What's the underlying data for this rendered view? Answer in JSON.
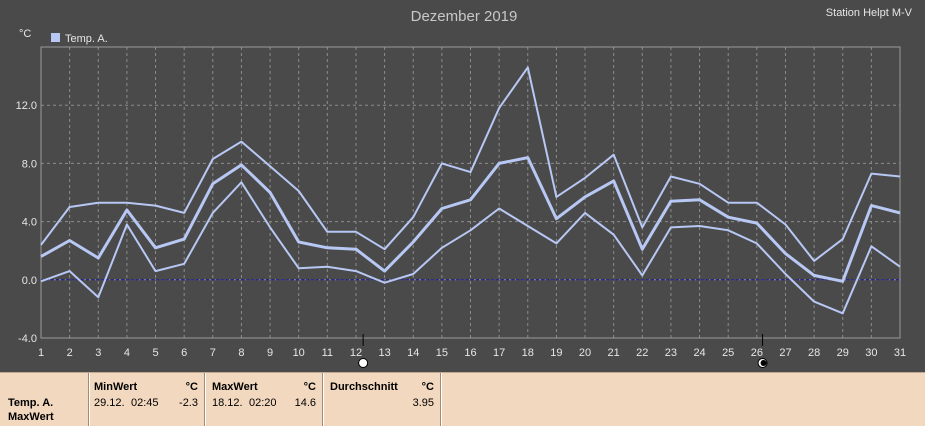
{
  "header": {
    "title": "Dezember 2019",
    "station": "Station Helpt M-V",
    "unit": "°C",
    "legend_label": "Temp. A."
  },
  "colors": {
    "background": "#4a4a4a",
    "grid": "#8c8c8c",
    "series": "#b8c8f4",
    "zero_line": "#1a1aa0",
    "panel": "#f2d8bf"
  },
  "chart_data": {
    "type": "line",
    "title": "Dezember 2019",
    "xlabel": "",
    "ylabel": "°C",
    "xlim": [
      1,
      31
    ],
    "ylim": [
      -4,
      16
    ],
    "yticks": [
      "-4.0",
      "0.0",
      "4.0",
      "8.0",
      "12.0"
    ],
    "ytick_values": [
      -4,
      0,
      4,
      8,
      12
    ],
    "xticks": [
      "1",
      "2",
      "3",
      "4",
      "5",
      "6",
      "7",
      "8",
      "9",
      "10",
      "11",
      "12",
      "13",
      "14",
      "15",
      "16",
      "17",
      "18",
      "19",
      "20",
      "21",
      "22",
      "23",
      "24",
      "25",
      "26",
      "27",
      "28",
      "29",
      "30",
      "31"
    ],
    "grid": true,
    "legend": "top-left",
    "x": [
      1,
      2,
      3,
      4,
      5,
      6,
      7,
      8,
      9,
      10,
      11,
      12,
      13,
      14,
      15,
      16,
      17,
      18,
      19,
      20,
      21,
      22,
      23,
      24,
      25,
      26,
      27,
      28,
      29,
      30,
      31
    ],
    "series": [
      {
        "name": "Temp. A.",
        "role": "max",
        "values": [
          2.4,
          5.0,
          5.3,
          5.3,
          5.1,
          4.6,
          8.3,
          9.5,
          7.8,
          6.1,
          3.3,
          3.3,
          2.1,
          4.3,
          8.0,
          7.4,
          11.8,
          14.6,
          5.7,
          7.0,
          8.6,
          3.6,
          7.1,
          6.6,
          5.3,
          5.3,
          3.8,
          1.3,
          2.8,
          7.3,
          7.1
        ]
      },
      {
        "name": "Temp. A.",
        "role": "mean",
        "values": [
          1.6,
          2.7,
          1.5,
          4.8,
          2.2,
          2.8,
          6.6,
          7.9,
          6.0,
          2.6,
          2.2,
          2.1,
          0.6,
          2.6,
          4.9,
          5.5,
          8.0,
          8.4,
          4.2,
          5.7,
          6.8,
          2.1,
          5.4,
          5.5,
          4.3,
          3.9,
          1.8,
          0.3,
          -0.1,
          5.1,
          4.6
        ]
      },
      {
        "name": "Temp. A.",
        "role": "min",
        "values": [
          -0.1,
          0.6,
          -1.2,
          3.8,
          0.6,
          1.1,
          4.6,
          6.7,
          3.6,
          0.8,
          0.9,
          0.6,
          -0.2,
          0.4,
          2.2,
          3.4,
          4.9,
          3.7,
          2.5,
          4.6,
          3.1,
          0.3,
          3.6,
          3.7,
          3.4,
          2.5,
          0.4,
          -1.5,
          -2.3,
          2.3,
          0.9
        ]
      }
    ],
    "markers": [
      {
        "day": 12.25,
        "symbol": "open-circle"
      },
      {
        "day": 26.2,
        "symbol": "filled-circle"
      }
    ]
  },
  "stats": {
    "row_label": "Temp. A.",
    "row_sub": "MaxWert",
    "min": {
      "header": "MinWert",
      "unit": "°C",
      "date": "29.12.",
      "time": "02:45",
      "value": "-2.3"
    },
    "max": {
      "header": "MaxWert",
      "unit": "°C",
      "date": "18.12.",
      "time": "02:20",
      "value": "14.6"
    },
    "avg": {
      "header": "Durchschnitt",
      "unit": "°C",
      "value": "3.95"
    }
  }
}
